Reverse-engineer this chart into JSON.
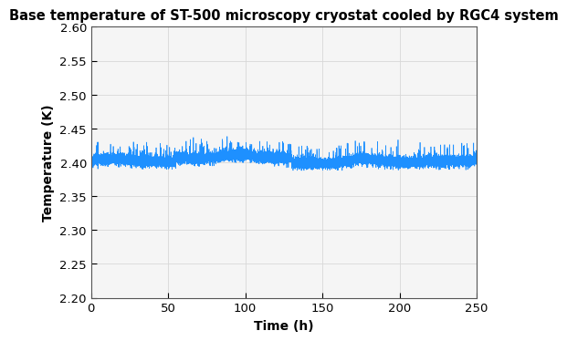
{
  "title": "Base temperature of ST-500 microscopy cryostat cooled by RGC4 system",
  "xlabel": "Time (h)",
  "ylabel": "Temperature (K)",
  "xlim": [
    0,
    250
  ],
  "ylim": [
    2.2,
    2.6
  ],
  "xticks": [
    0,
    50,
    100,
    150,
    200,
    250
  ],
  "yticks": [
    2.2,
    2.25,
    2.3,
    2.35,
    2.4,
    2.45,
    2.5,
    2.55,
    2.6
  ],
  "line_color": "#1E90FF",
  "background_color": "#ffffff",
  "axes_background_color": "#f5f5f5",
  "grid_color": "#d8d8d8",
  "n_points": 15000,
  "base_temp": 2.402,
  "noise_std": 0.004,
  "title_fontsize": 10.5,
  "label_fontsize": 10,
  "tick_fontsize": 9.5
}
